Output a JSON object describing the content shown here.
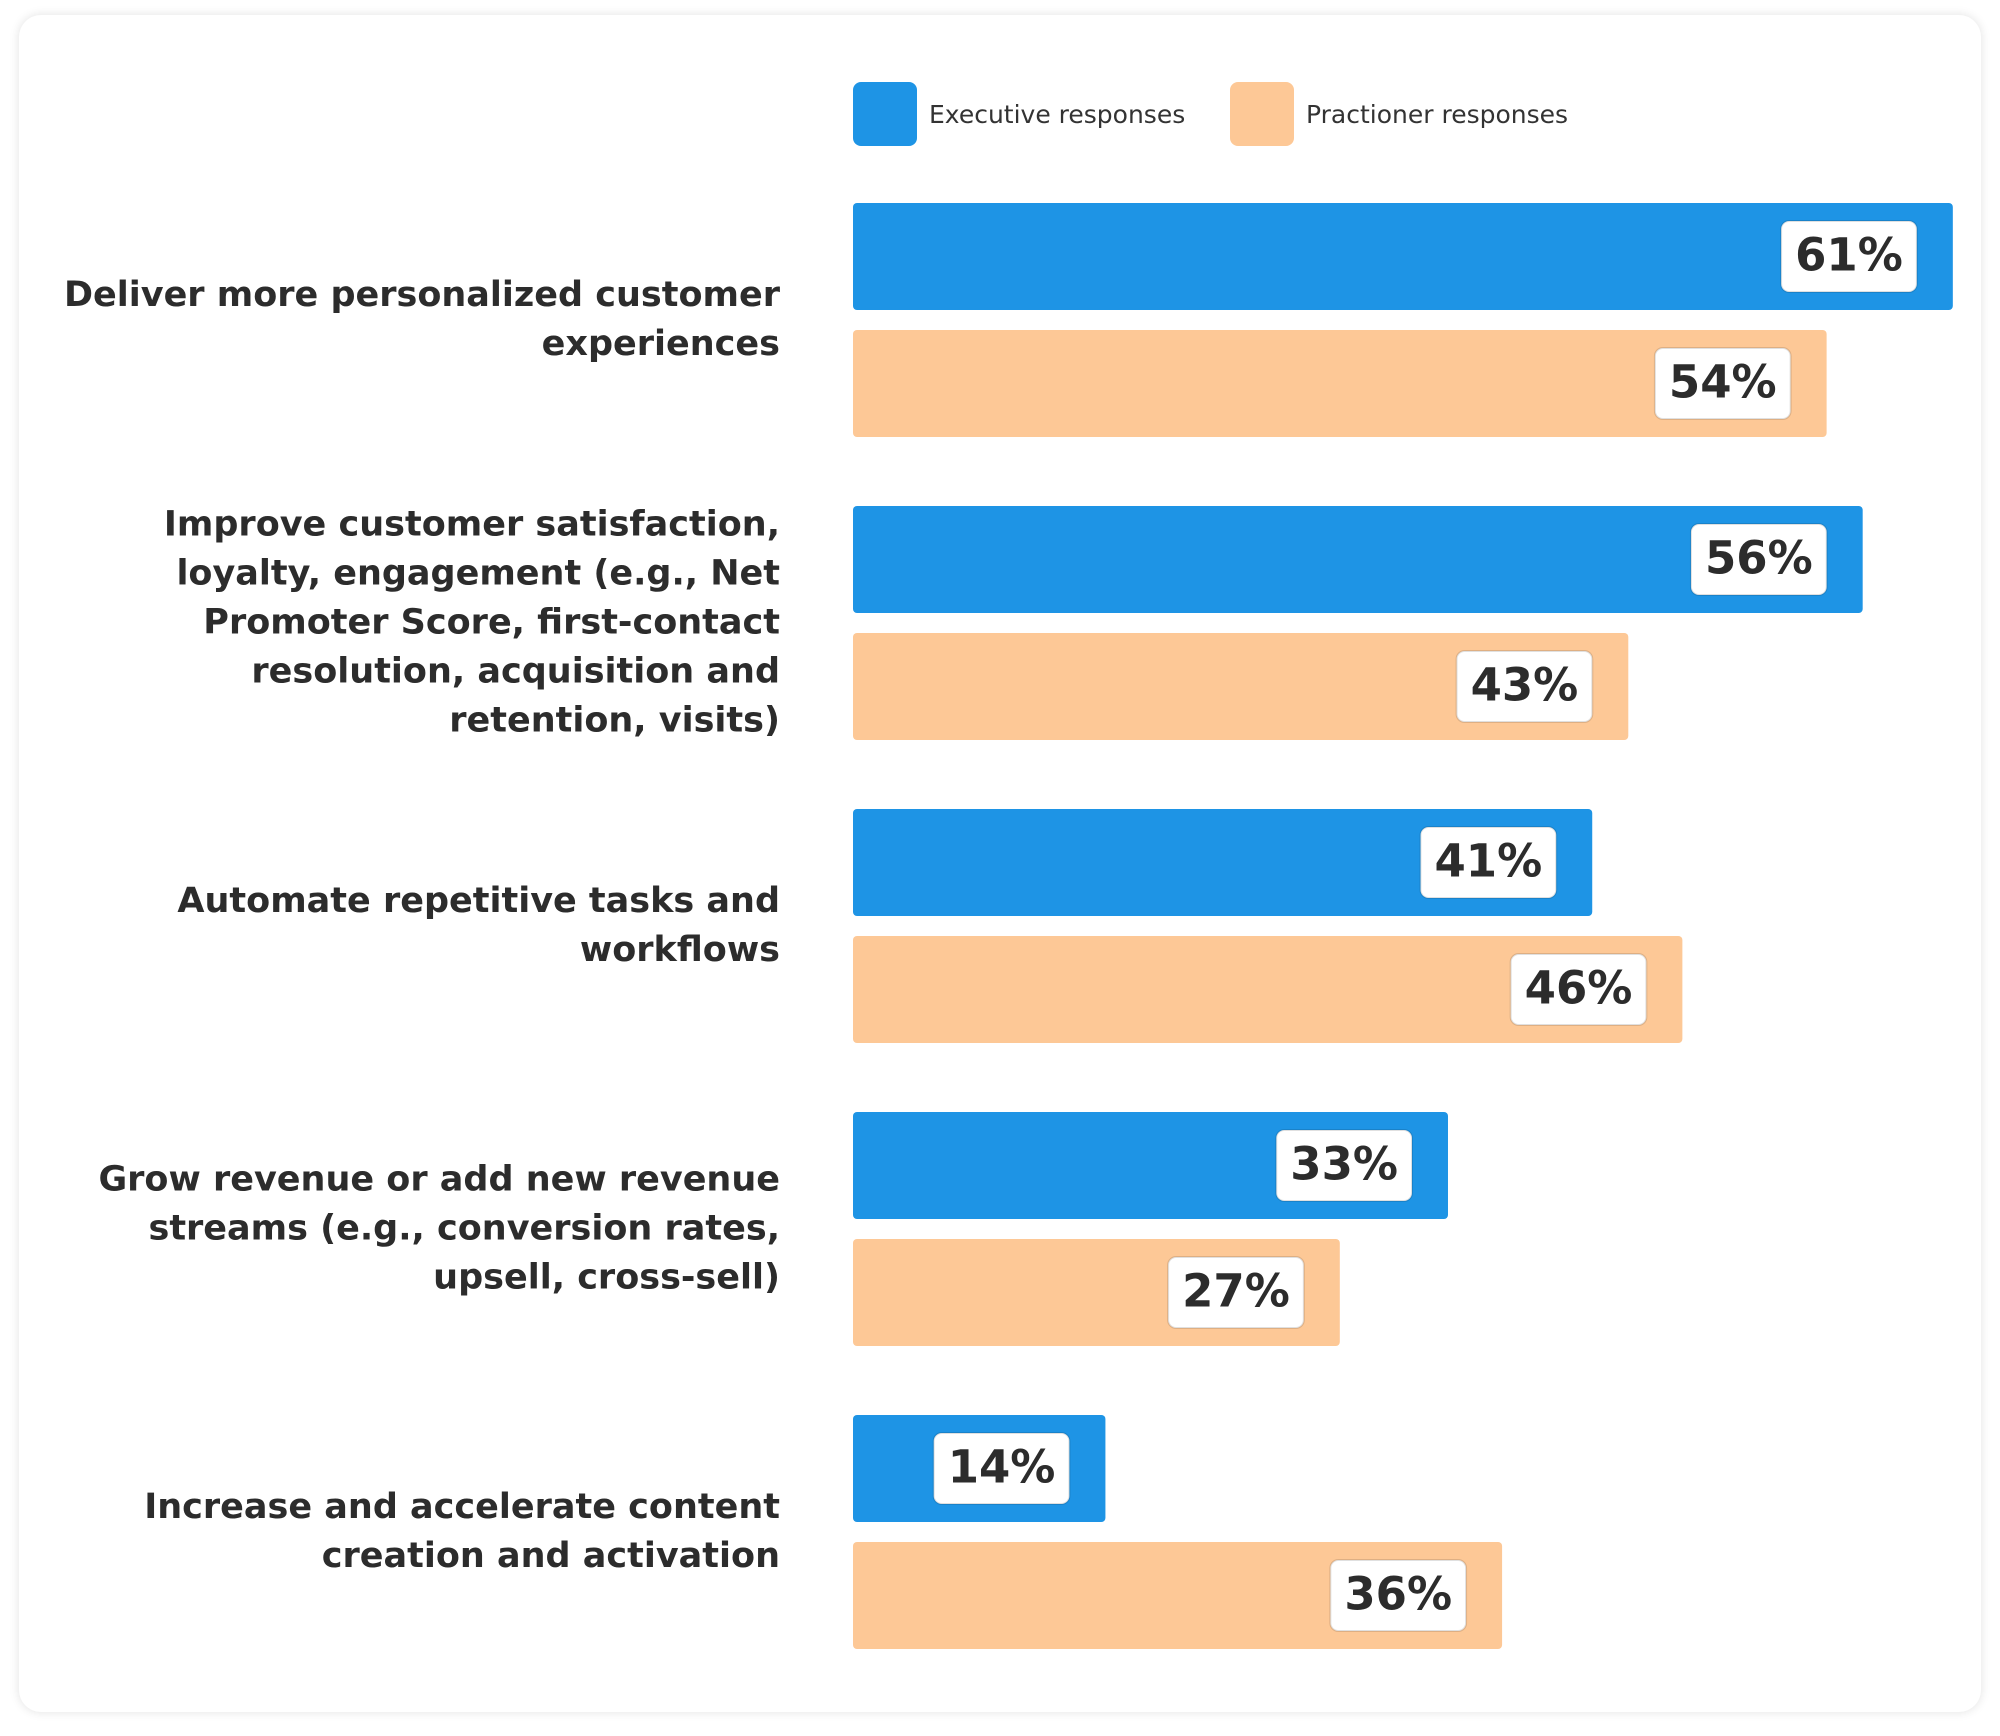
{
  "chart_data": {
    "type": "bar",
    "orientation": "horizontal",
    "categories": [
      "Deliver more personalized customer experiences",
      "Improve customer satisfaction, loyalty, engagement (e.g., Net Promoter Score, first-contact resolution, acquisition and retention, visits)",
      "Automate repetitive tasks and workflows",
      "Grow revenue or add new revenue streams (e.g., conversion rates, upsell, cross-sell)",
      "Increase and accelerate content creation and activation"
    ],
    "series": [
      {
        "name": "Executive responses",
        "color": "#1e94e5",
        "values": [
          61,
          56,
          41,
          33,
          14
        ],
        "value_labels": [
          "61%",
          "56%",
          "41%",
          "33%",
          "14%"
        ]
      },
      {
        "name": "Practioner responses",
        "color": "#fdc896",
        "values": [
          54,
          43,
          46,
          27,
          36
        ],
        "value_labels": [
          "54%",
          "43%",
          "46%",
          "27%",
          "36%"
        ]
      }
    ],
    "legend": "top"
  }
}
